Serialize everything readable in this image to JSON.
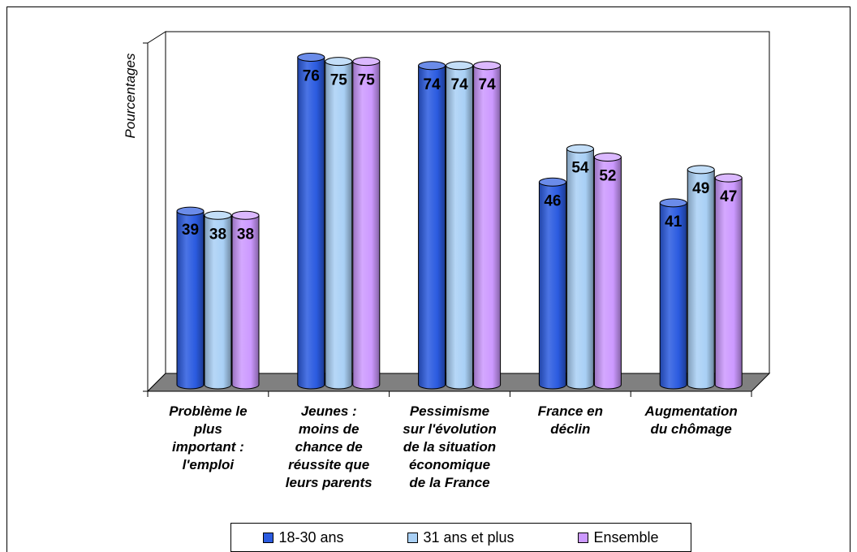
{
  "chart_data": {
    "type": "bar",
    "ylabel": "Pourcentages",
    "ylim": [
      0,
      80
    ],
    "categories": [
      [
        "Problème le",
        "plus",
        "important :",
        "l'emploi"
      ],
      [
        "Jeunes :",
        "moins de",
        "chance de",
        "réussite que",
        "leurs parents"
      ],
      [
        "Pessimisme",
        "sur l'évolution",
        "de la situation",
        "économique",
        "de la France"
      ],
      [
        "France en",
        "déclin"
      ],
      [
        "Augmentation",
        "du chômage"
      ]
    ],
    "series": [
      {
        "name": "18-30 ans",
        "values": [
          39,
          76,
          74,
          46,
          41
        ],
        "color": "#2b5be0"
      },
      {
        "name": "31 ans et plus",
        "values": [
          38,
          75,
          74,
          54,
          49
        ],
        "color": "#a9d0f5"
      },
      {
        "name": "Ensemble",
        "values": [
          38,
          75,
          74,
          52,
          47
        ],
        "color": "#cc99ff"
      }
    ],
    "grid": false,
    "legend_position": "bottom"
  }
}
